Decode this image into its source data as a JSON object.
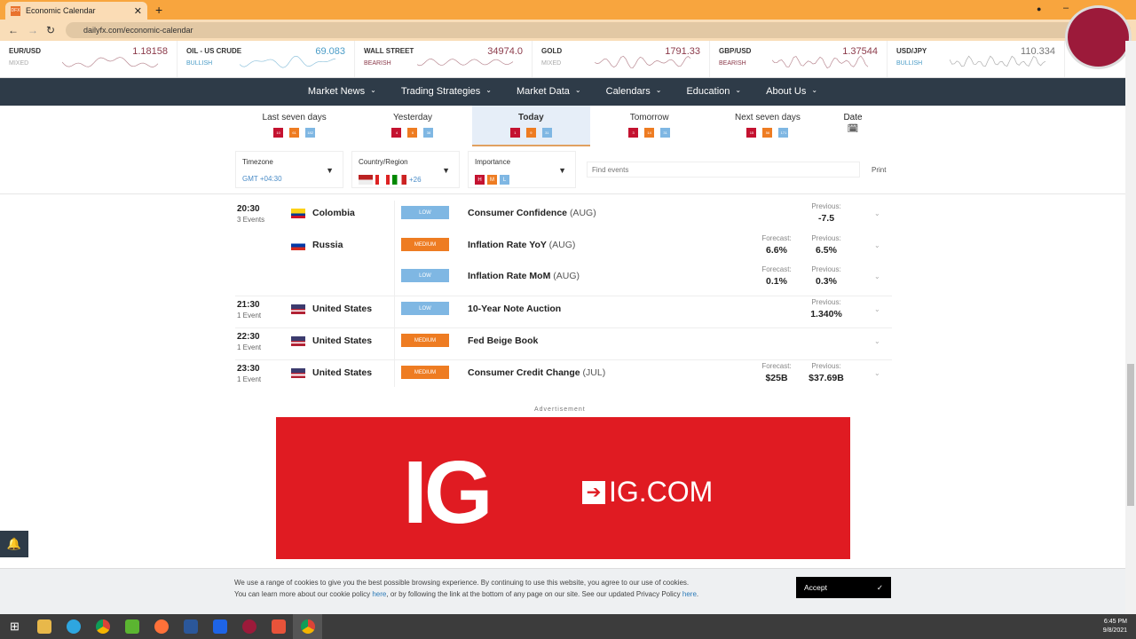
{
  "browser": {
    "tab_title": "Economic Calendar",
    "favicon": "DFX",
    "url": "dailyfx.com/economic-calendar"
  },
  "ticker": [
    {
      "name": "EUR/USD",
      "value": "1.18158",
      "sentiment": "MIXED",
      "color": "#8b3a4a",
      "scolor": "#aaaaaa"
    },
    {
      "name": "OIL - US CRUDE",
      "value": "69.083",
      "sentiment": "BULLISH",
      "color": "#4a9cc7",
      "scolor": "#4a9cc7"
    },
    {
      "name": "WALL STREET",
      "value": "34974.0",
      "sentiment": "BEARISH",
      "color": "#8b3a4a",
      "scolor": "#8b3a4a"
    },
    {
      "name": "GOLD",
      "value": "1791.33",
      "sentiment": "MIXED",
      "color": "#8b3a4a",
      "scolor": "#aaaaaa"
    },
    {
      "name": "GBP/USD",
      "value": "1.37544",
      "sentiment": "BEARISH",
      "color": "#8b3a4a",
      "scolor": "#8b3a4a"
    },
    {
      "name": "USD/JPY",
      "value": "110.334",
      "sentiment": "BULLISH",
      "color": "#777777",
      "scolor": "#4a9cc7"
    }
  ],
  "nav": [
    "Market News",
    "Trading Strategies",
    "Market Data",
    "Calendars",
    "Education",
    "About Us"
  ],
  "days": [
    {
      "label": "Last seven days",
      "h": "10",
      "m": "61",
      "l": "182"
    },
    {
      "label": "Yesterday",
      "h": "4",
      "m": "6",
      "l": "38"
    },
    {
      "label": "Today",
      "h": "1",
      "m": "9",
      "l": "31",
      "active": true
    },
    {
      "label": "Tomorrow",
      "h": "3",
      "m": "14",
      "l": "31"
    },
    {
      "label": "Next seven days",
      "h": "15",
      "m": "56",
      "l": "171"
    }
  ],
  "date_label": "Date",
  "filters": {
    "timezone_label": "Timezone",
    "timezone_value": "GMT +04:30",
    "country_label": "Country/Region",
    "country_more": "+26",
    "importance_label": "Importance",
    "importance": [
      "H",
      "M",
      "L"
    ],
    "find_placeholder": "Find events",
    "print": "Print"
  },
  "events": [
    {
      "time": "20:30",
      "count": "3 Events",
      "country": "Colombia",
      "importance": "LOW",
      "event": "Consumer Confidence",
      "period": "(AUG)",
      "forecast": "",
      "previous": "-7.5"
    },
    {
      "time": "",
      "count": "",
      "country": "Russia",
      "importance": "MEDIUM",
      "event": "Inflation Rate YoY",
      "period": "(AUG)",
      "forecast": "6.6%",
      "previous": "6.5%"
    },
    {
      "time": "",
      "count": "",
      "country": "",
      "importance": "LOW",
      "event": "Inflation Rate MoM",
      "period": "(AUG)",
      "forecast": "0.1%",
      "previous": "0.3%"
    },
    {
      "time": "21:30",
      "count": "1 Event",
      "country": "United States",
      "importance": "LOW",
      "event": "10-Year Note Auction",
      "period": "",
      "forecast": "",
      "previous": "1.340%"
    },
    {
      "time": "22:30",
      "count": "1 Event",
      "country": "United States",
      "importance": "MEDIUM",
      "event": "Fed Beige Book",
      "period": "",
      "forecast": "",
      "previous": ""
    },
    {
      "time": "23:30",
      "count": "1 Event",
      "country": "United States",
      "importance": "MEDIUM",
      "event": "Consumer Credit Change",
      "period": "(JUL)",
      "forecast": "$25B",
      "previous": "$37.69B"
    }
  ],
  "labels": {
    "forecast": "Forecast:",
    "previous": "Previous:"
  },
  "ad": {
    "label": "Advertisement",
    "logo": "IG",
    "site": "IG.COM"
  },
  "cookie": {
    "line1": "We use a range of cookies to give you the best possible browsing experience. By continuing to use this website, you agree to our use of cookies.",
    "line2a": "You can learn more about our cookie policy ",
    "link1": "here",
    "line2b": ", or by following the link at the bottom of any page on our site. See our updated Privacy Policy ",
    "link2": "here",
    "line2c": ".",
    "accept": "Accept"
  },
  "clock": {
    "time": "6:45 PM",
    "date": "9/8/2021"
  }
}
